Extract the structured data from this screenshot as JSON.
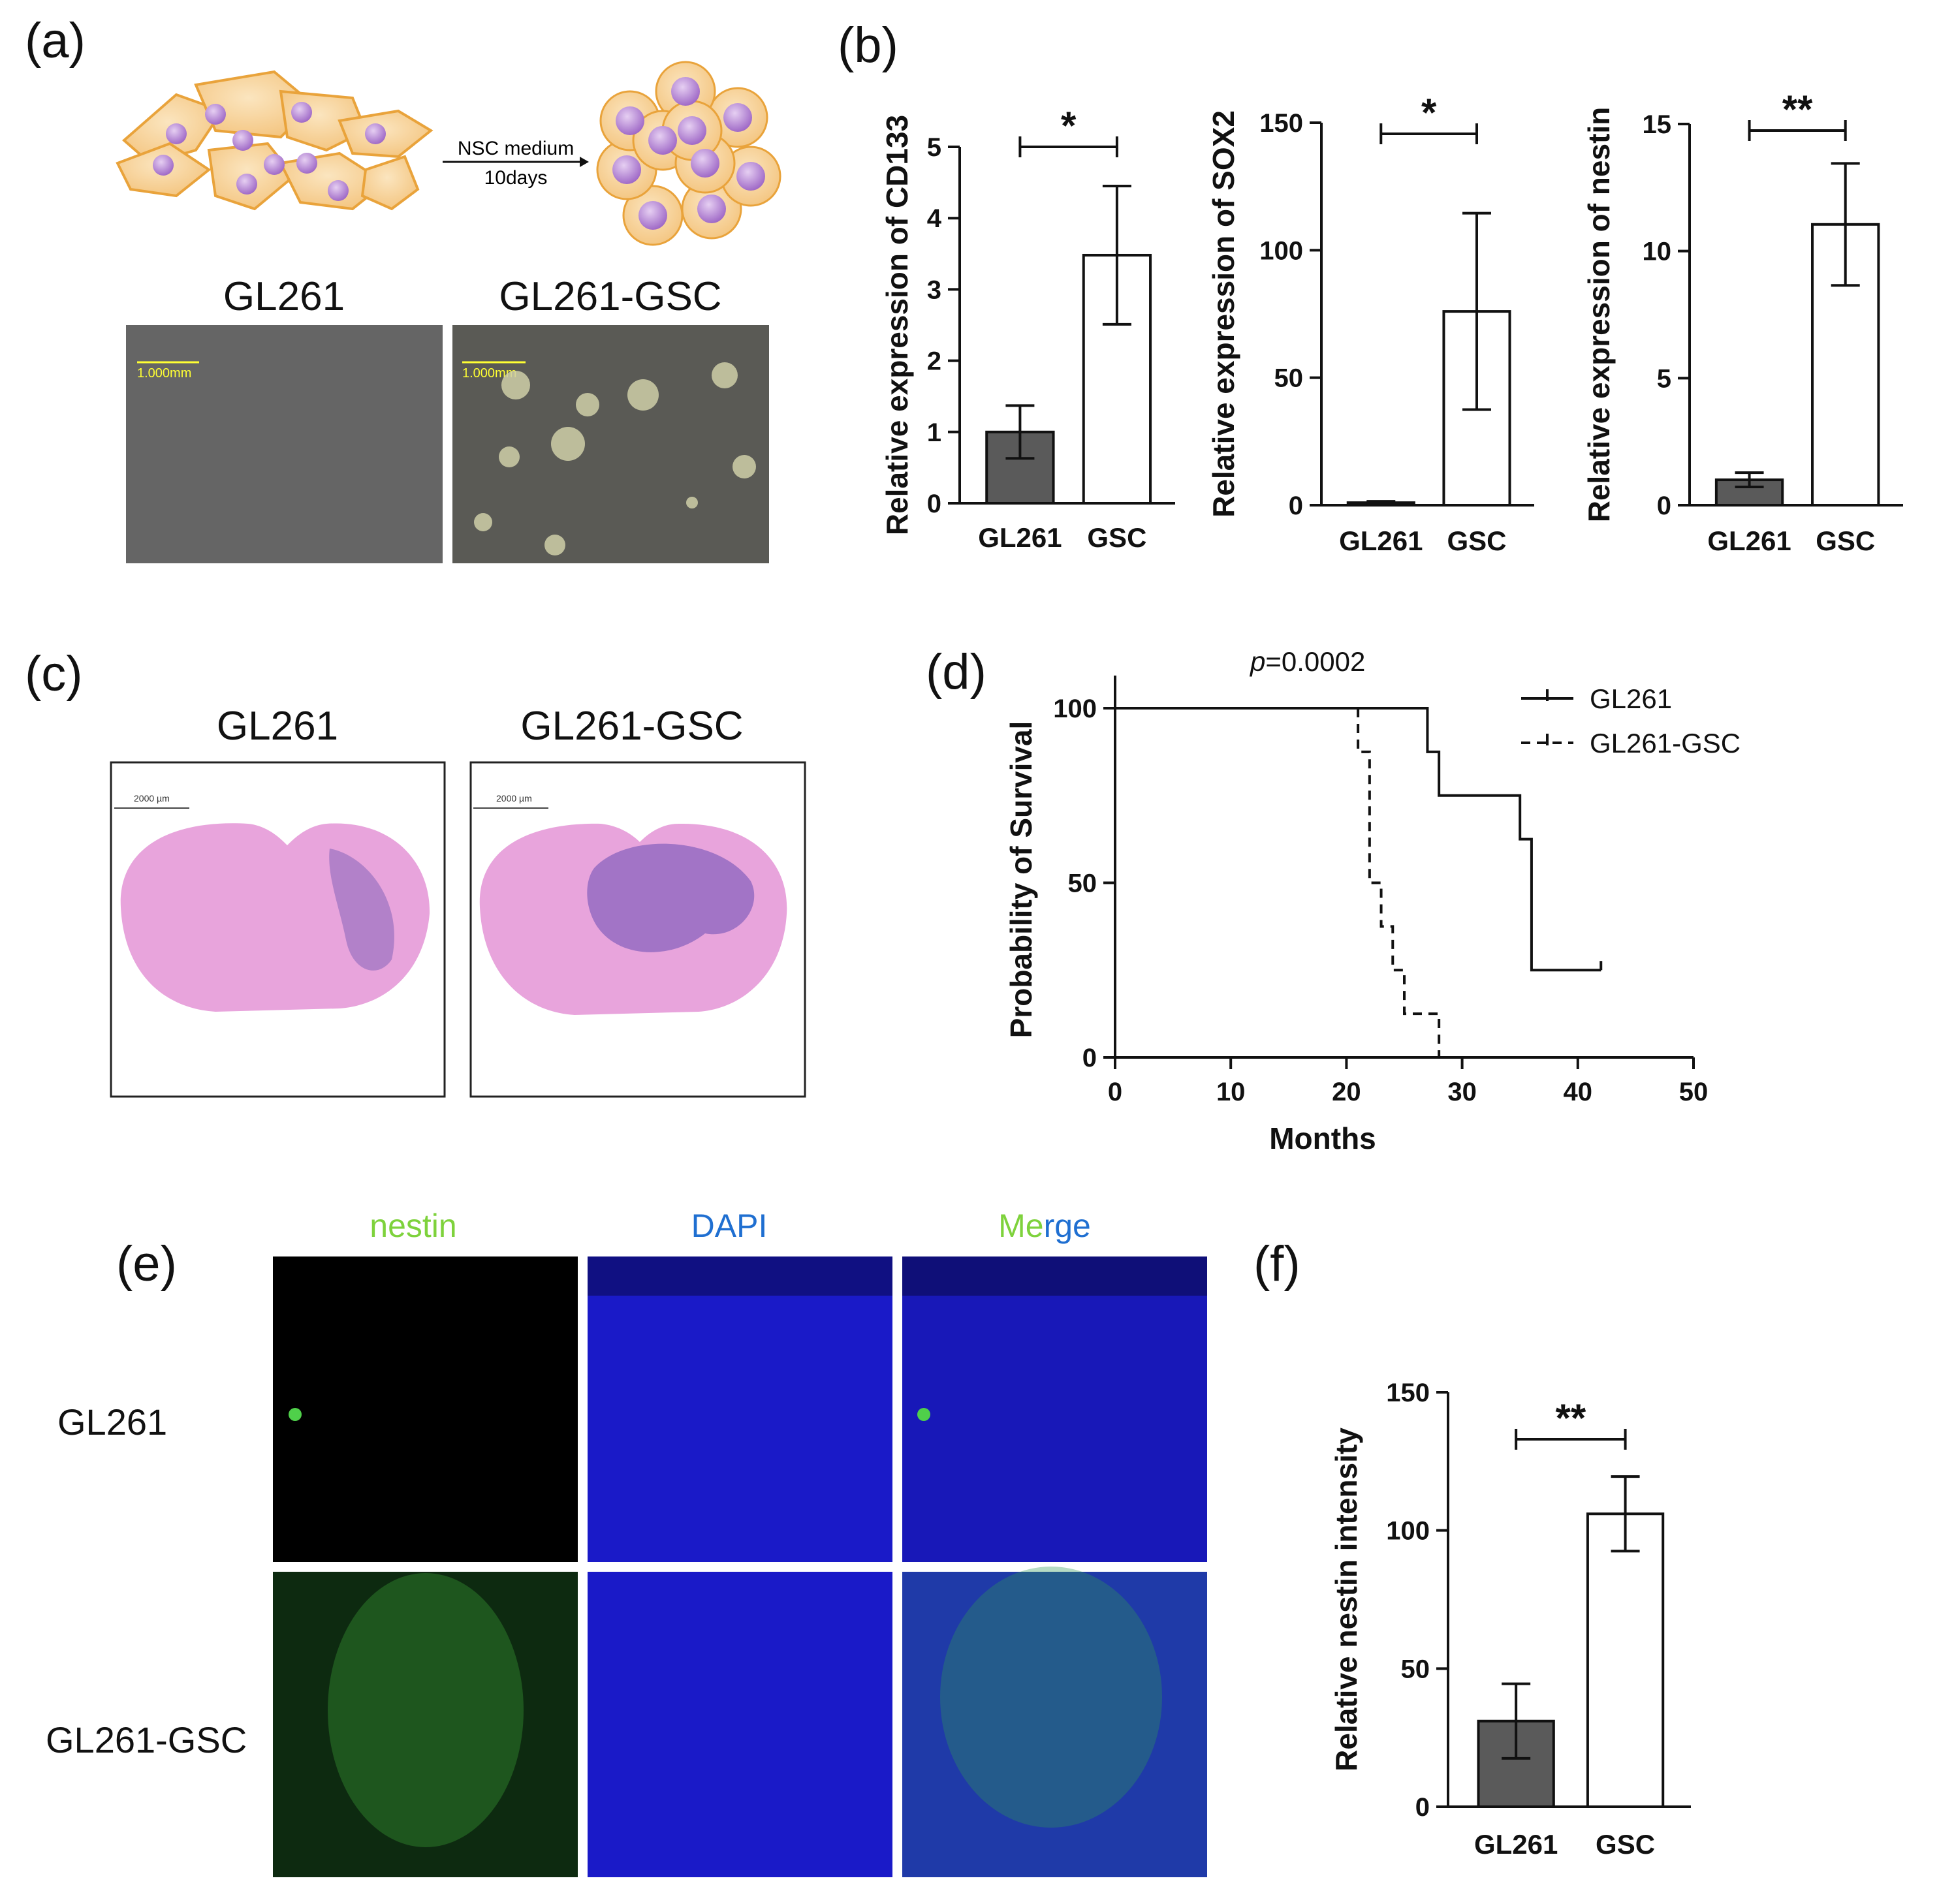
{
  "panels": {
    "a": {
      "label": "(a)",
      "arrow_text_1": "NSC medium",
      "arrow_text_2": "10days",
      "images": [
        {
          "title": "GL261",
          "scale_text": "1.000mm"
        },
        {
          "title": "GL261-GSC",
          "scale_text": "1.000mm"
        }
      ]
    },
    "b": {
      "label": "(b)"
    },
    "c": {
      "label": "(c)",
      "images": [
        {
          "title": "GL261",
          "scale_text": "2000 µm"
        },
        {
          "title": "GL261-GSC",
          "scale_text": "2000 µm"
        }
      ]
    },
    "d": {
      "label": "(d)",
      "pvalue_italic": "p",
      "pvalue_rest": "=0.0002"
    },
    "e": {
      "label": "(e)",
      "col_nestin": "nestin",
      "col_dapi": "DAPI",
      "col_merge_a": "Me",
      "col_merge_b": "rge",
      "row_1": "GL261",
      "row_2": "GL261-GSC"
    },
    "f": {
      "label": "(f)"
    }
  },
  "colors": {
    "gl261_bar": "#5a5a5a",
    "gsc_bar": "#ffffff",
    "nestin_green": "#7ed23c",
    "dapi_blue": "#1f6fd1",
    "cell_fill": "#f7d6a3",
    "cell_stroke": "#e9a33b",
    "nucleus": "#b889d6",
    "he_pink": "#e6a2d8",
    "he_purple": "#9a6fc3"
  },
  "chart_data": [
    {
      "id": "b1",
      "type": "bar",
      "categories": [
        "GL261",
        "GSC"
      ],
      "values": [
        1.0,
        3.48
      ],
      "error": [
        0.37,
        0.97
      ],
      "ylabel": "Relative expression of CD133",
      "ylim": [
        0,
        5
      ],
      "yticks": [
        0,
        1,
        2,
        3,
        4,
        5
      ],
      "significance": "*"
    },
    {
      "id": "b2",
      "type": "bar",
      "categories": [
        "GL261",
        "GSC"
      ],
      "values": [
        1.0,
        76
      ],
      "error": [
        0.5,
        38.5
      ],
      "ylabel": "Relative expression of SOX2",
      "ylim": [
        0,
        150
      ],
      "yticks": [
        0,
        50,
        100,
        150
      ],
      "significance": "*"
    },
    {
      "id": "b3",
      "type": "bar",
      "categories": [
        "GL261",
        "GSC"
      ],
      "values": [
        1.0,
        11.05
      ],
      "error": [
        0.28,
        2.4
      ],
      "ylabel": "Relative expression of nestin",
      "ylim": [
        0,
        15
      ],
      "yticks": [
        0,
        5,
        10,
        15
      ],
      "significance": "**"
    },
    {
      "id": "d",
      "type": "line",
      "subtype": "kaplan-meier",
      "xlabel": "Months",
      "ylabel": "Probability of Survival",
      "xlim": [
        0,
        50
      ],
      "ylim": [
        0,
        100
      ],
      "xticks": [
        0,
        10,
        20,
        30,
        40,
        50
      ],
      "yticks": [
        0,
        50,
        100
      ],
      "legend_position": "top-right",
      "series": [
        {
          "name": "GL261",
          "style": "solid",
          "steps": [
            [
              0,
              100
            ],
            [
              27,
              100
            ],
            [
              27,
              87.5
            ],
            [
              28,
              87.5
            ],
            [
              28,
              75
            ],
            [
              35,
              75
            ],
            [
              35,
              62.5
            ],
            [
              36,
              62.5
            ],
            [
              36,
              25
            ],
            [
              42,
              25
            ]
          ],
          "censor": [
            42
          ]
        },
        {
          "name": "GL261-GSC",
          "style": "dashed",
          "steps": [
            [
              21,
              100
            ],
            [
              21,
              87.5
            ],
            [
              22,
              87.5
            ],
            [
              22,
              50
            ],
            [
              23,
              50
            ],
            [
              23,
              37.5
            ],
            [
              24,
              37.5
            ],
            [
              24,
              25
            ],
            [
              25,
              25
            ],
            [
              25,
              12.5
            ],
            [
              28,
              12.5
            ],
            [
              28,
              0
            ]
          ],
          "censor": []
        }
      ]
    },
    {
      "id": "f",
      "type": "bar",
      "categories": [
        "GL261",
        "GSC"
      ],
      "values": [
        31,
        106
      ],
      "error": [
        13.5,
        13.5
      ],
      "ylabel": "Relative nestin intensity",
      "ylim": [
        0,
        150
      ],
      "yticks": [
        0,
        50,
        100,
        150
      ],
      "significance": "**"
    }
  ]
}
